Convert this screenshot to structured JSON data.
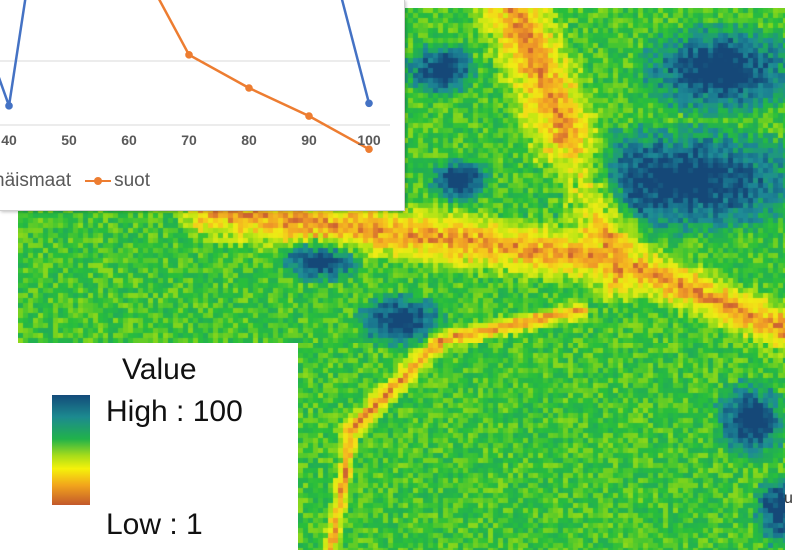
{
  "chart_data": {
    "type": "line",
    "x": [
      40,
      50,
      60,
      70,
      80,
      90,
      100
    ],
    "series": [
      {
        "name": "näismaat",
        "color": "#4472c4",
        "values": [
          33,
          null,
          null,
          null,
          null,
          null,
          34
        ]
      },
      {
        "name": "suot",
        "color": "#ed7d31",
        "values": [
          null,
          null,
          null,
          53,
          40,
          29,
          16
        ]
      }
    ],
    "legend": {
      "items": [
        {
          "label": "näismaat",
          "color": "#4472c4"
        },
        {
          "label": "suot",
          "color": "#ed7d31"
        }
      ],
      "position": "bottom"
    },
    "grid": true,
    "note": "inset chart is cropped at the top and left of the screenshot"
  },
  "map_legend": {
    "title": "Value",
    "high_label": "High : 100",
    "low_label": "Low : 1",
    "ramp_colors": [
      "#134b7a",
      "#1c8a8f",
      "#21b24a",
      "#a6dc1a",
      "#f5f20a",
      "#f2a51c",
      "#c2582b"
    ]
  },
  "edge_fragment": "u"
}
